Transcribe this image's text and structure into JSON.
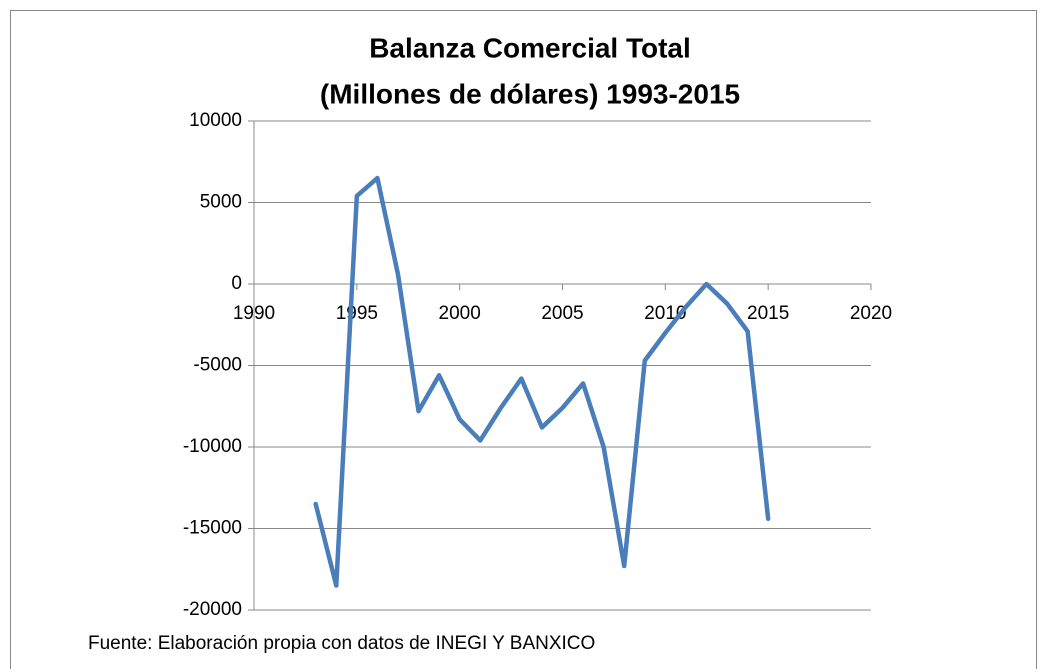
{
  "chart_data": {
    "type": "line",
    "title": [
      "Balanza Comercial Total",
      "(Millones de dólares) 1993-2015"
    ],
    "x": [
      1993,
      1994,
      1995,
      1996,
      1997,
      1998,
      1999,
      2000,
      2001,
      2002,
      2003,
      2004,
      2005,
      2006,
      2007,
      2008,
      2009,
      2010,
      2011,
      2012,
      2013,
      2014,
      2015
    ],
    "values": [
      -13500,
      -18500,
      5400,
      6500,
      600,
      -7800,
      -5600,
      -8300,
      -9600,
      -7600,
      -5800,
      -8800,
      -7600,
      -6100,
      -10000,
      -17300,
      -4700,
      -3000,
      -1400,
      0,
      -1200,
      -2900,
      -14400
    ],
    "color": "#4a7ebb",
    "xlim": [
      1990,
      2020
    ],
    "xticks": [
      1990,
      1995,
      2000,
      2005,
      2010,
      2015,
      2020
    ],
    "ylim": [
      -20000,
      10000
    ],
    "yticks": [
      -20000,
      -15000,
      -10000,
      -5000,
      0,
      5000,
      10000
    ],
    "grid": true,
    "source": "Fuente: Elaboración propia con datos de INEGI Y BANXICO"
  }
}
